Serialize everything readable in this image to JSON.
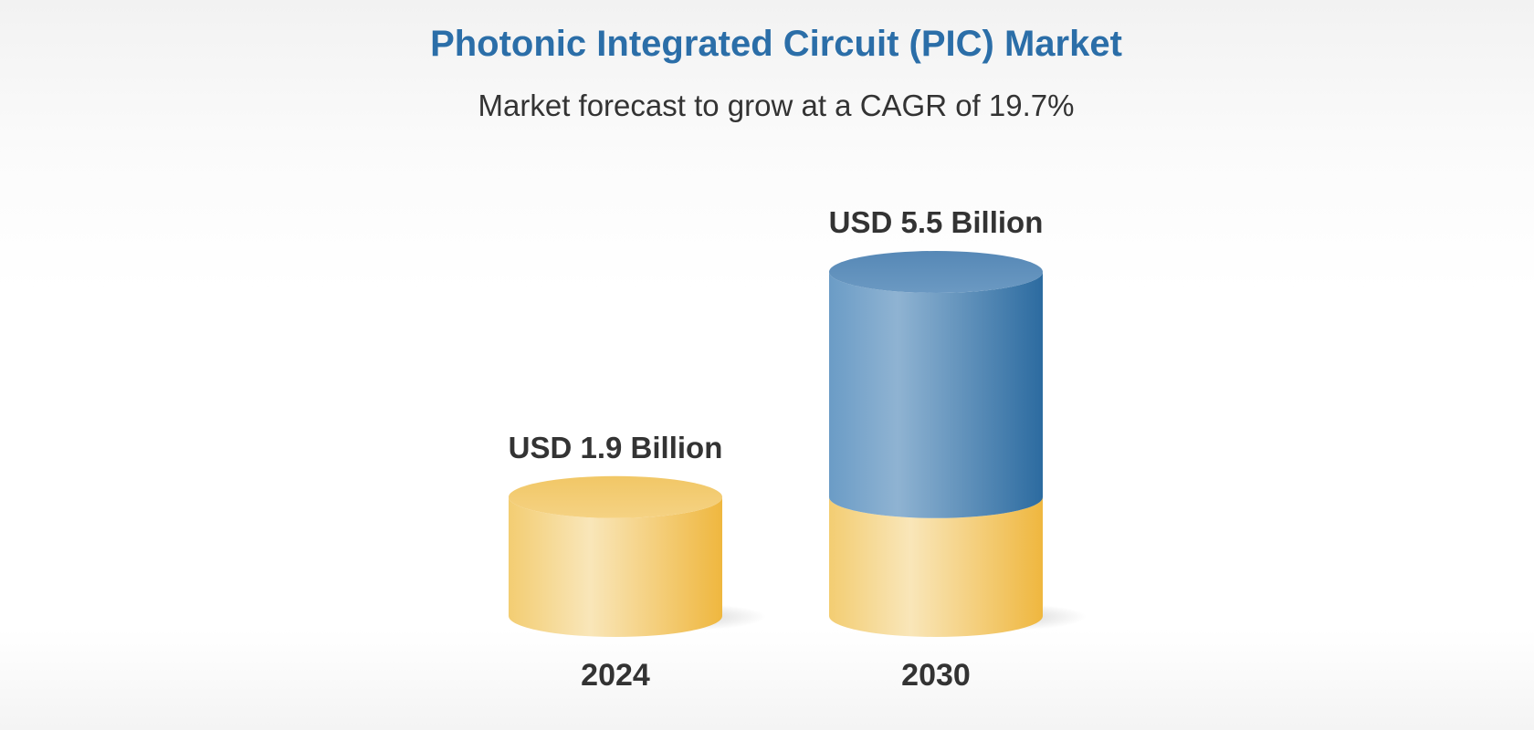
{
  "header": {
    "title": "Photonic Integrated Circuit (PIC) Market",
    "subtitle": "Market forecast to grow at a CAGR of 19.7%"
  },
  "colors": {
    "title": "#2b6ea8",
    "text": "#333333",
    "base_segment": "#f0c259",
    "growth_segment": "#4a84b6"
  },
  "chart_data": {
    "type": "bar",
    "style": "3d-cylinder",
    "categories": [
      "2024",
      "2030"
    ],
    "values": [
      1.9,
      5.5
    ],
    "unit": "USD Billion",
    "value_labels": [
      "USD 1.9 Billion",
      "USD 5.5 Billion"
    ],
    "base_value": 1.9,
    "title": "Photonic Integrated Circuit (PIC) Market",
    "subtitle": "Market forecast to grow at a CAGR of 19.7%",
    "xlabel": "",
    "ylabel": "",
    "grid": false,
    "legend": "none"
  }
}
